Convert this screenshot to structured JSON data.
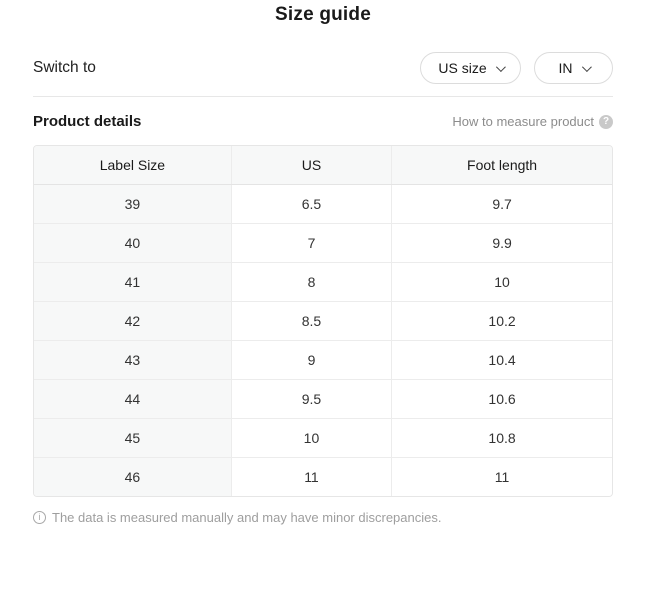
{
  "title": "Size guide",
  "switch_row": {
    "label": "Switch to",
    "buttons": [
      {
        "label": "US size",
        "icon": "chevron-down-icon"
      },
      {
        "label": "IN",
        "icon": "chevron-down-icon"
      }
    ]
  },
  "product_details": {
    "heading": "Product details",
    "help_text": "How to measure product",
    "help_icon_glyph": "?"
  },
  "table": {
    "columns": [
      "Label Size",
      "US",
      "Foot length"
    ],
    "rows": [
      [
        "39",
        "6.5",
        "9.7"
      ],
      [
        "40",
        "7",
        "9.9"
      ],
      [
        "41",
        "8",
        "10"
      ],
      [
        "42",
        "8.5",
        "10.2"
      ],
      [
        "43",
        "9",
        "10.4"
      ],
      [
        "44",
        "9.5",
        "10.6"
      ],
      [
        "45",
        "10",
        "10.8"
      ],
      [
        "46",
        "11",
        "11"
      ]
    ]
  },
  "footnote": {
    "icon_glyph": "i",
    "text": "The data is measured manually and may have minor discrepancies."
  },
  "colors": {
    "header_bg": "#f7f8f8",
    "border": "#e6e6e6",
    "muted_text": "#8c8c8c",
    "footnote_text": "#9e9e9e",
    "pill_border": "#dcdcdc"
  }
}
